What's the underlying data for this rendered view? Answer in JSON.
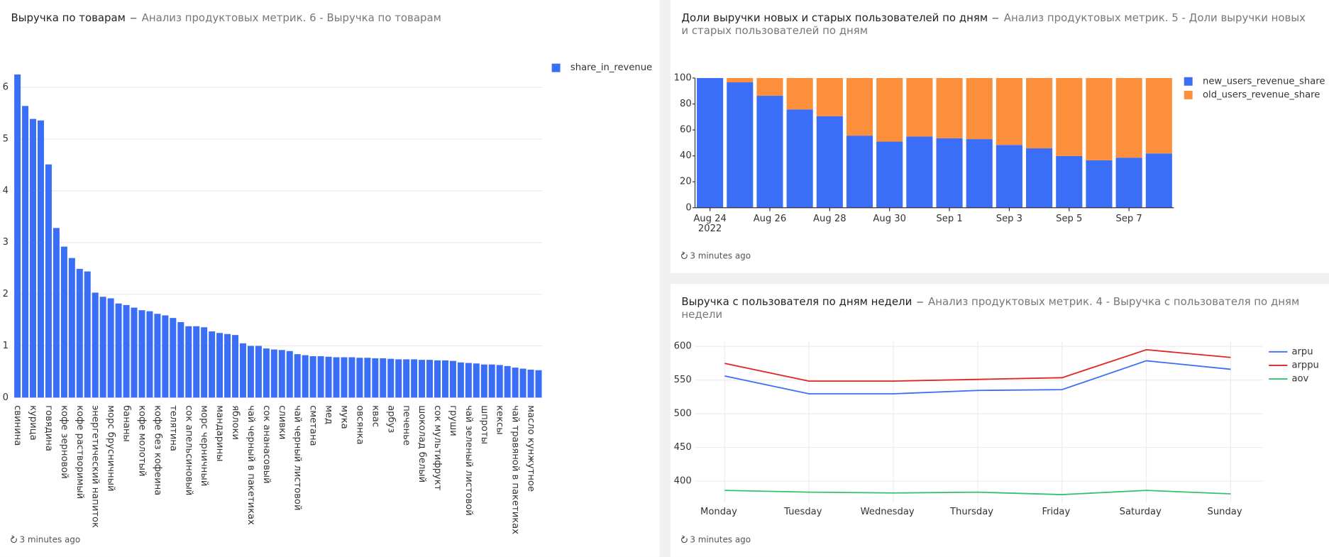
{
  "chart_data": [
    {
      "type": "bar",
      "title": "Выручка по товарам",
      "subtitle": "Анализ продуктовых метрик. 6 - Выручка по товарам",
      "updated": "3 minutes ago",
      "categories": [
        "свинина",
        null,
        "курица",
        null,
        "говядина",
        null,
        "кофе зерновой",
        null,
        "кофе растворимый",
        null,
        "энергетический напиток",
        null,
        "морс брусничный",
        null,
        "бананы",
        null,
        "кофе молотый",
        null,
        "кофе без кофеина",
        null,
        "телятина",
        null,
        "сок апельсиновый",
        null,
        "морс черничный",
        null,
        "мандарины",
        null,
        "яблоки",
        null,
        "чай черный в пакетиках",
        null,
        "сок ананасовый",
        null,
        "сливки",
        null,
        "чай черный листовой",
        null,
        "сметана",
        null,
        "мед",
        null,
        "мука",
        null,
        "овсянка",
        null,
        "квас",
        null,
        "арбуз",
        null,
        "печенье",
        null,
        "шоколад белый",
        null,
        "сок мультифрукт",
        null,
        "груши",
        null,
        "чай зеленый листовой",
        null,
        "шпроты",
        null,
        "кексы",
        null,
        "чай травяной в пакетиках",
        null,
        "масло кунжутное",
        null
      ],
      "series": [
        {
          "name": "share_in_revenue",
          "color": "#3b6ef6",
          "values": [
            6.25,
            5.64,
            5.39,
            5.36,
            4.51,
            3.28,
            2.92,
            2.7,
            2.49,
            2.44,
            2.03,
            1.95,
            1.92,
            1.82,
            1.79,
            1.74,
            1.69,
            1.67,
            1.62,
            1.59,
            1.54,
            1.46,
            1.38,
            1.38,
            1.36,
            1.28,
            1.25,
            1.23,
            1.21,
            1.05,
            1.0,
            1.0,
            0.95,
            0.93,
            0.92,
            0.9,
            0.84,
            0.82,
            0.8,
            0.8,
            0.79,
            0.78,
            0.78,
            0.78,
            0.77,
            0.77,
            0.76,
            0.76,
            0.75,
            0.74,
            0.74,
            0.74,
            0.73,
            0.73,
            0.72,
            0.72,
            0.71,
            0.68,
            0.67,
            0.66,
            0.64,
            0.64,
            0.63,
            0.61,
            0.58,
            0.56,
            0.54,
            0.53
          ]
        }
      ],
      "ylim": [
        0,
        6.4
      ],
      "yticks": [
        0,
        1,
        2,
        3,
        4,
        5,
        6
      ],
      "grid": true,
      "legend": "right"
    },
    {
      "type": "bar",
      "stacked": true,
      "title": "Доли выручки новых и старых пользователей по дням",
      "subtitle": "Анализ продуктовых метрик. 5 - Доли выручки новых и старых пользователей по дням",
      "updated": "3 minutes ago",
      "categories": [
        "Aug 24",
        null,
        "Aug 26",
        null,
        "Aug 28",
        null,
        "Aug 30",
        null,
        "Sep 1",
        null,
        "Sep 3",
        null,
        "Sep 5",
        null,
        "Sep 7",
        null
      ],
      "x_year_label": "2022",
      "series": [
        {
          "name": "new_users_revenue_share",
          "color": "#3b6ef6",
          "values": [
            100,
            96.7,
            86.3,
            75.8,
            70.6,
            55.6,
            51,
            54.9,
            53.6,
            52.9,
            48.4,
            45.8,
            39.9,
            36.6,
            38.6,
            41.8
          ]
        },
        {
          "name": "old_users_revenue_share",
          "color": "#fb8f3c",
          "values": [
            0,
            3.3,
            13.7,
            24.2,
            29.4,
            44.4,
            49,
            45.1,
            46.4,
            47.1,
            51.6,
            54.2,
            60.1,
            63.4,
            61.4,
            58.2
          ]
        }
      ],
      "ylim": [
        0,
        100
      ],
      "yticks": [
        0,
        20,
        40,
        60,
        80,
        100
      ],
      "grid": false,
      "legend": "right"
    },
    {
      "type": "line",
      "title": "Выручка с пользователя по дням недели",
      "subtitle": "Анализ продуктовых метрик. 4 - Выручка с пользователя по дням недели",
      "updated": "3 minutes ago",
      "categories": [
        "Monday",
        "Tuesday",
        "Wednesday",
        "Thursday",
        "Friday",
        "Saturday",
        "Sunday"
      ],
      "series": [
        {
          "name": "arpu",
          "color": "#3b6ef6",
          "values": [
            556,
            529.6,
            529.6,
            534.6,
            535.8,
            578.6,
            566
          ]
        },
        {
          "name": "arppu",
          "color": "#e02424",
          "values": [
            574.8,
            548.4,
            548.4,
            551,
            553.5,
            595,
            583.6
          ]
        },
        {
          "name": "aov",
          "color": "#35c26b",
          "values": [
            386.2,
            383.6,
            382.4,
            383.6,
            380,
            386.2,
            381.1
          ]
        }
      ],
      "ylim": [
        368,
        607
      ],
      "yticks": [
        400,
        450,
        500,
        550,
        600
      ],
      "grid": true,
      "legend": "right"
    }
  ]
}
